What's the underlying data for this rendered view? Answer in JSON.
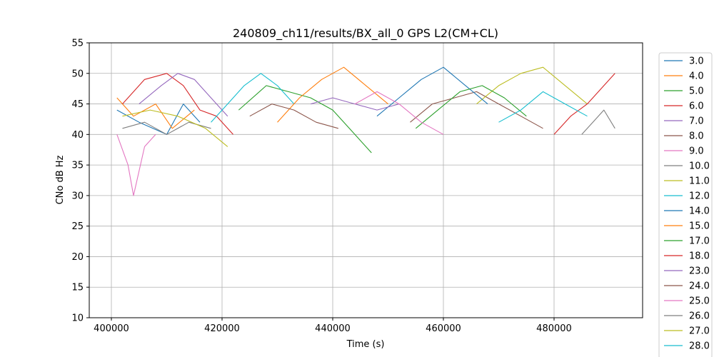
{
  "chart_data": {
    "type": "line",
    "title": "240809_ch11/results/BX_all_0 GPS L2(CM+CL)",
    "xlabel": "Time (s)",
    "ylabel": "CNo dB Hz",
    "xlim": [
      396000,
      496000
    ],
    "ylim": [
      10,
      55
    ],
    "xticks": [
      400000,
      420000,
      440000,
      460000,
      480000
    ],
    "yticks": [
      10,
      15,
      20,
      25,
      30,
      35,
      40,
      45,
      50,
      55
    ],
    "grid": true,
    "legend_position": "right-outside",
    "series": [
      {
        "name": "3.0",
        "color": "#1f77b4",
        "values": [
          [
            401000,
            44
          ],
          [
            405000,
            42
          ],
          [
            410000,
            40
          ],
          [
            413000,
            45
          ],
          [
            416000,
            42
          ]
        ]
      },
      {
        "name": "4.0",
        "color": "#ff7f0e",
        "values": [
          [
            401000,
            46
          ],
          [
            404000,
            43
          ],
          [
            408000,
            45
          ],
          [
            411000,
            41
          ],
          [
            415000,
            44
          ]
        ]
      },
      {
        "name": "5.0",
        "color": "#2ca02c",
        "values": [
          [
            423000,
            44
          ],
          [
            428000,
            48
          ],
          [
            432000,
            47
          ],
          [
            436000,
            46
          ],
          [
            440000,
            44
          ],
          [
            444000,
            40
          ],
          [
            447000,
            37
          ]
        ]
      },
      {
        "name": "6.0",
        "color": "#d62728",
        "values": [
          [
            402000,
            45
          ],
          [
            406000,
            49
          ],
          [
            410000,
            50
          ],
          [
            413000,
            48
          ],
          [
            416000,
            44
          ],
          [
            419000,
            43
          ],
          [
            422000,
            40
          ]
        ]
      },
      {
        "name": "7.0",
        "color": "#9467bd",
        "values": [
          [
            405000,
            45
          ],
          [
            409000,
            48
          ],
          [
            412000,
            50
          ],
          [
            415000,
            49
          ],
          [
            418000,
            46
          ],
          [
            421000,
            43
          ]
        ]
      },
      {
        "name": "8.0",
        "color": "#8c564b",
        "values": [
          [
            454000,
            42
          ],
          [
            458000,
            45
          ],
          [
            462000,
            46
          ],
          [
            466000,
            47
          ],
          [
            470000,
            45
          ],
          [
            474000,
            43
          ],
          [
            478000,
            41
          ]
        ]
      },
      {
        "name": "9.0",
        "color": "#e377c2",
        "values": [
          [
            401000,
            40
          ],
          [
            403000,
            35
          ],
          [
            404000,
            30
          ],
          [
            406000,
            38
          ],
          [
            408000,
            40
          ]
        ]
      },
      {
        "name": "10.0",
        "color": "#7f7f7f",
        "values": [
          [
            402000,
            41
          ],
          [
            406000,
            42
          ],
          [
            410000,
            40
          ],
          [
            414000,
            42
          ],
          [
            418000,
            41
          ]
        ]
      },
      {
        "name": "11.0",
        "color": "#bcbd22",
        "values": [
          [
            466000,
            45
          ],
          [
            470000,
            48
          ],
          [
            474000,
            50
          ],
          [
            478000,
            51
          ],
          [
            482000,
            48
          ],
          [
            486000,
            45
          ]
        ]
      },
      {
        "name": "12.0",
        "color": "#17becf",
        "values": [
          [
            418000,
            42
          ],
          [
            421000,
            45
          ],
          [
            424000,
            48
          ],
          [
            427000,
            50
          ],
          [
            430000,
            48
          ],
          [
            433000,
            45
          ]
        ]
      },
      {
        "name": "14.0",
        "color": "#1f77b4",
        "values": [
          [
            448000,
            43
          ],
          [
            452000,
            46
          ],
          [
            456000,
            49
          ],
          [
            460000,
            51
          ],
          [
            464000,
            48
          ],
          [
            468000,
            45
          ]
        ]
      },
      {
        "name": "15.0",
        "color": "#ff7f0e",
        "values": [
          [
            430000,
            42
          ],
          [
            434000,
            46
          ],
          [
            438000,
            49
          ],
          [
            442000,
            51
          ],
          [
            446000,
            48
          ],
          [
            450000,
            45
          ]
        ]
      },
      {
        "name": "17.0",
        "color": "#2ca02c",
        "values": [
          [
            455000,
            41
          ],
          [
            459000,
            44
          ],
          [
            463000,
            47
          ],
          [
            467000,
            48
          ],
          [
            471000,
            46
          ],
          [
            475000,
            43
          ]
        ]
      },
      {
        "name": "18.0",
        "color": "#d62728",
        "values": [
          [
            480000,
            40
          ],
          [
            483000,
            43
          ],
          [
            486000,
            45
          ],
          [
            489000,
            48
          ],
          [
            491000,
            50
          ]
        ]
      },
      {
        "name": "23.0",
        "color": "#9467bd",
        "values": [
          [
            436000,
            45
          ],
          [
            440000,
            46
          ],
          [
            444000,
            45
          ],
          [
            448000,
            44
          ],
          [
            452000,
            45
          ]
        ]
      },
      {
        "name": "24.0",
        "color": "#8c564b",
        "values": [
          [
            425000,
            43
          ],
          [
            429000,
            45
          ],
          [
            433000,
            44
          ],
          [
            437000,
            42
          ],
          [
            441000,
            41
          ]
        ]
      },
      {
        "name": "25.0",
        "color": "#e377c2",
        "values": [
          [
            444000,
            45
          ],
          [
            448000,
            47
          ],
          [
            452000,
            45
          ],
          [
            456000,
            42
          ],
          [
            460000,
            40
          ]
        ]
      },
      {
        "name": "26.0",
        "color": "#7f7f7f",
        "values": [
          [
            485000,
            40
          ],
          [
            487000,
            42
          ],
          [
            489000,
            44
          ],
          [
            491000,
            41
          ]
        ]
      },
      {
        "name": "27.0",
        "color": "#bcbd22",
        "values": [
          [
            402000,
            43
          ],
          [
            407000,
            44
          ],
          [
            412000,
            43
          ],
          [
            417000,
            41
          ],
          [
            421000,
            38
          ]
        ]
      },
      {
        "name": "28.0",
        "color": "#17becf",
        "values": [
          [
            470000,
            42
          ],
          [
            474000,
            44
          ],
          [
            478000,
            47
          ],
          [
            482000,
            45
          ],
          [
            486000,
            43
          ]
        ]
      }
    ]
  }
}
